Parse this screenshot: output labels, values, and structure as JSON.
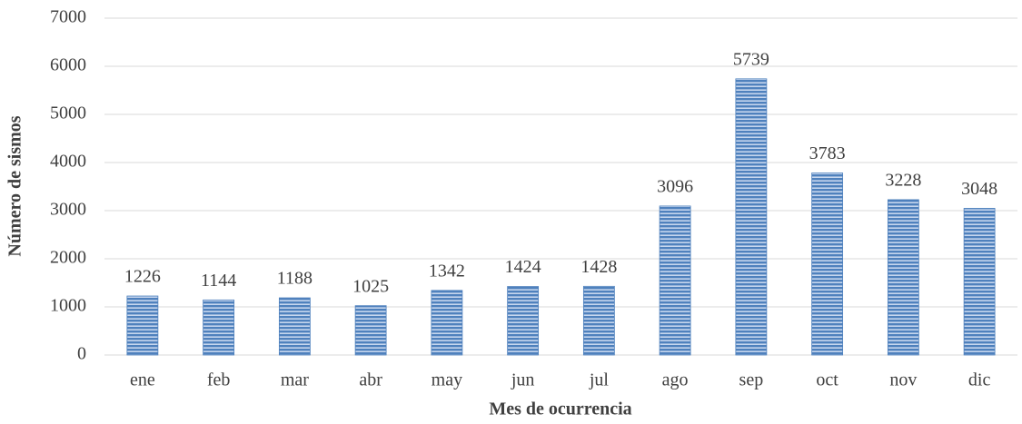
{
  "chart_data": {
    "type": "bar",
    "x_label": "Mes de ocurrencia",
    "y_label": "Número de sismos",
    "categories": [
      "ene",
      "feb",
      "mar",
      "abr",
      "may",
      "jun",
      "jul",
      "ago",
      "sep",
      "oct",
      "nov",
      "dic"
    ],
    "values": [
      1226,
      1144,
      1188,
      1025,
      1342,
      1424,
      1428,
      3096,
      5739,
      3783,
      3228,
      3048
    ],
    "color": "#4f81bd",
    "ylim": [
      0,
      7000
    ],
    "yticks": [
      0,
      1000,
      2000,
      3000,
      4000,
      5000,
      6000,
      7000
    ],
    "grid": true
  }
}
